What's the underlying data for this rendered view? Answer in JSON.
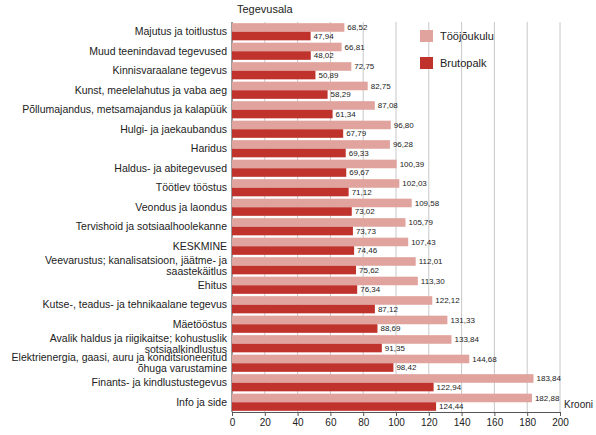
{
  "chart_data": {
    "type": "bar",
    "orientation": "horizontal",
    "y_label": "Tegevusala",
    "x_label": "Krooni",
    "categories": [
      "Majutus ja toitlustus",
      "Muud teenindavad tegevused",
      "Kinnisvaraalane tegevus",
      "Kunst, meelelahutus ja vaba aeg",
      "Põllumajandus, metsamajandus ja kalapüük",
      "Hulgi- ja jaekaubandus",
      "Haridus",
      "Haldus- ja abitegevused",
      "Töötlev tööstus",
      "Veondus ja laondus",
      "Tervishoid ja sotsiaalhoolekanne",
      "KESKMINE",
      "Veevarustus; kanalisatsioon, jäätme- ja saastekäitlus",
      "Ehitus",
      "Kutse-, teadus- ja tehnikaalane tegevus",
      "Mäetööstus",
      "Avalik haldus ja riigikaitse; kohustuslik sotsiaalkindlustus",
      "Elektrienergia, gaasi, auru ja konditsioneeritud õhuga varustamine",
      "Finants- ja kindlustustegevus",
      "Info ja side"
    ],
    "series": [
      {
        "name": "Tööjõukulu",
        "color": "#e0a39d",
        "values": [
          68.52,
          66.81,
          72.75,
          82.75,
          87.08,
          96.8,
          96.28,
          100.39,
          102.03,
          109.58,
          105.79,
          107.43,
          112.01,
          113.3,
          122.12,
          131.33,
          133.84,
          144.68,
          183.84,
          182.88
        ],
        "value_labels": [
          "68,52",
          "66,81",
          "72,75",
          "82,75",
          "87,08",
          "96,80",
          "96,28",
          "100,39",
          "102,03",
          "109,58",
          "105,79",
          "107,43",
          "112,01",
          "113,30",
          "122,12",
          "131,33",
          "133,84",
          "144,68",
          "183,84",
          "182,88"
        ]
      },
      {
        "name": "Brutopalk",
        "color": "#c0322c",
        "values": [
          47.94,
          48.02,
          50.89,
          58.29,
          61.34,
          67.79,
          69.33,
          69.67,
          71.12,
          73.02,
          73.73,
          74.46,
          75.62,
          76.34,
          87.12,
          88.69,
          91.35,
          98.42,
          122.94,
          124.44
        ],
        "value_labels": [
          "47,94",
          "48,02",
          "50,89",
          "58,29",
          "61,34",
          "67,79",
          "69,33",
          "69,67",
          "71,12",
          "73,02",
          "73,73",
          "74,46",
          "75,62",
          "76,34",
          "87,12",
          "88,69",
          "91,35",
          "98,42",
          "122,94",
          "124,44"
        ]
      }
    ],
    "xlim": [
      0,
      200
    ],
    "xticks": [
      0,
      20,
      40,
      60,
      80,
      100,
      120,
      140,
      160,
      180,
      200
    ],
    "grid": true,
    "legend": "upper right",
    "data_labels": true
  }
}
